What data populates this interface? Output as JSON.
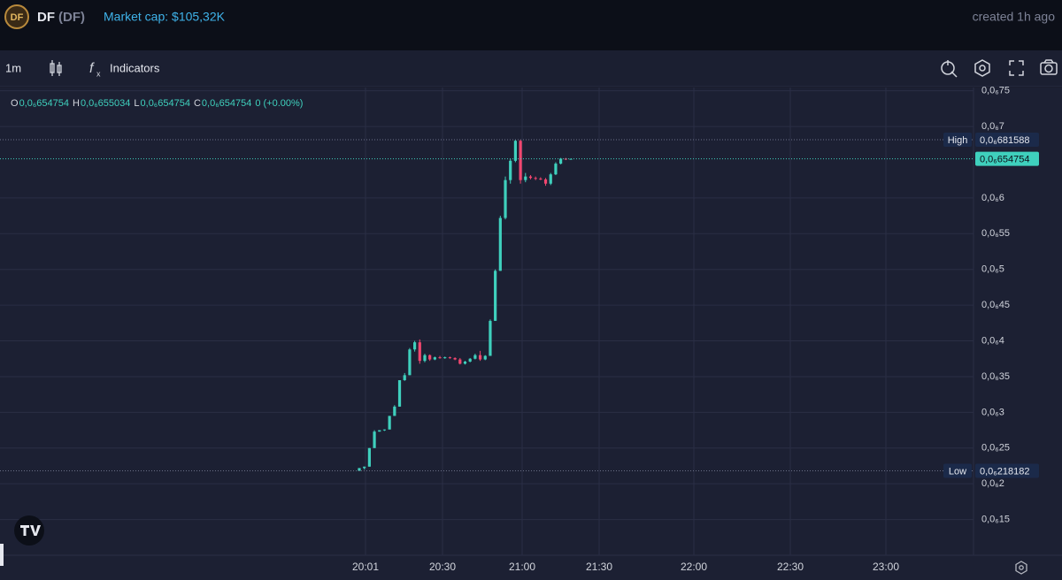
{
  "header": {
    "token": "DF",
    "ticker": "(DF)",
    "market_cap": "Market cap: $105,32K",
    "created": "created 1h ago"
  },
  "toolbar": {
    "interval": "1m",
    "indicators": "Indicators"
  },
  "chart_data": {
    "type": "candlestick",
    "ohlc_legend": [
      {
        "key": "O",
        "value": "0,0₆654754"
      },
      {
        "key": "H",
        "value": "0,0₆655034"
      },
      {
        "key": "L",
        "value": "0,0₆654754"
      },
      {
        "key": "C",
        "value": "0,0₆654754"
      }
    ],
    "change": "0 (+0.00%)",
    "up_color": "#3fd0bd",
    "down_color": "#f2466f",
    "open": [
      2.18e-07,
      2.22e-07,
      2.24e-07,
      2.5e-07,
      2.73e-07,
      2.75e-07,
      2.76e-07,
      2.95e-07,
      3.08e-07,
      3.45e-07,
      3.52e-07,
      3.88e-07,
      3.98e-07,
      3.72e-07,
      3.8e-07,
      3.74e-07,
      3.77e-07,
      3.76e-07,
      3.77e-07,
      3.76e-07,
      3.74e-07,
      3.68e-07,
      3.71e-07,
      3.75e-07,
      3.8e-07,
      3.74e-07,
      3.79e-07,
      4.28e-07,
      4.98e-07,
      5.72e-07,
      6.25e-07,
      6.52e-07,
      6.8e-07,
      6.25e-07,
      6.3e-07,
      6.28e-07,
      6.27e-07,
      6.26e-07,
      6.2e-07,
      6.33e-07,
      6.48e-07,
      6.55e-07,
      6.54754e-07
    ],
    "high": [
      2.22e-07,
      2.24e-07,
      2.5e-07,
      2.75e-07,
      2.75e-07,
      2.76e-07,
      2.95e-07,
      3.1e-07,
      3.45e-07,
      3.55e-07,
      3.9e-07,
      4e-07,
      4.02e-07,
      3.82e-07,
      3.81e-07,
      3.78e-07,
      3.79e-07,
      3.78e-07,
      3.78e-07,
      3.77e-07,
      3.76e-07,
      3.72e-07,
      3.76e-07,
      3.82e-07,
      3.86e-07,
      3.8e-07,
      4.3e-07,
      5e-07,
      5.75e-07,
      6.3e-07,
      6.55e-07,
      6.82e-07,
      6.81588e-07,
      6.35e-07,
      6.32e-07,
      6.3e-07,
      6.29e-07,
      6.28e-07,
      6.35e-07,
      6.5e-07,
      6.56e-07,
      6.56e-07,
      6.55034e-07
    ],
    "low": [
      2.18182e-07,
      2.2e-07,
      2.24e-07,
      2.5e-07,
      2.73e-07,
      2.74e-07,
      2.76e-07,
      2.95e-07,
      3.08e-07,
      3.44e-07,
      3.52e-07,
      3.85e-07,
      3.68e-07,
      3.7e-07,
      3.72e-07,
      3.73e-07,
      3.75e-07,
      3.75e-07,
      3.75e-07,
      3.73e-07,
      3.67e-07,
      3.67e-07,
      3.7e-07,
      3.74e-07,
      3.72e-07,
      3.73e-07,
      3.79e-07,
      4.28e-07,
      4.98e-07,
      5.7e-07,
      6.2e-07,
      6.5e-07,
      6.2e-07,
      6.22e-07,
      6.26e-07,
      6.25e-07,
      6.25e-07,
      6.17e-07,
      6.18e-07,
      6.32e-07,
      6.47e-07,
      6.53e-07,
      6.54754e-07
    ],
    "close": [
      2.22e-07,
      2.24e-07,
      2.5e-07,
      2.73e-07,
      2.75e-07,
      2.76e-07,
      2.95e-07,
      3.08e-07,
      3.45e-07,
      3.52e-07,
      3.88e-07,
      3.98e-07,
      3.72e-07,
      3.8e-07,
      3.74e-07,
      3.77e-07,
      3.76e-07,
      3.77e-07,
      3.76e-07,
      3.74e-07,
      3.68e-07,
      3.71e-07,
      3.75e-07,
      3.8e-07,
      3.74e-07,
      3.79e-07,
      4.28e-07,
      4.98e-07,
      5.72e-07,
      6.25e-07,
      6.52e-07,
      6.8e-07,
      6.25e-07,
      6.3e-07,
      6.28e-07,
      6.27e-07,
      6.26e-07,
      6.2e-07,
      6.33e-07,
      6.48e-07,
      6.55e-07,
      6.54754e-07,
      6.54754e-07
    ],
    "ylim": [
      1e-07,
      7.57e-07
    ],
    "yticks": [
      {
        "value": 7.5e-07,
        "label": "0,0₆75"
      },
      {
        "value": 7e-07,
        "label": "0,0₆7"
      },
      {
        "value": 6e-07,
        "label": "0,0₆6"
      },
      {
        "value": 5.5e-07,
        "label": "0,0₆55"
      },
      {
        "value": 5e-07,
        "label": "0,0₆5"
      },
      {
        "value": 4.5e-07,
        "label": "0,0₆45"
      },
      {
        "value": 4e-07,
        "label": "0,0₆4"
      },
      {
        "value": 3.5e-07,
        "label": "0,0₆35"
      },
      {
        "value": 3e-07,
        "label": "0,0₆3"
      },
      {
        "value": 2.5e-07,
        "label": "0,0₆25"
      },
      {
        "value": 2e-07,
        "label": "0,0₆2"
      },
      {
        "value": 1.5e-07,
        "label": "0,0₆15"
      }
    ],
    "x_labels": [
      "20:01",
      "20:30",
      "21:00",
      "21:30",
      "22:00",
      "22:30",
      "23:00"
    ],
    "high_marker": {
      "label": "High",
      "value": 6.81588e-07,
      "value_label": "0,0₆681588"
    },
    "low_marker": {
      "label": "Low",
      "value": 2.18182e-07,
      "value_label": "0,0₆218182"
    },
    "last_price": {
      "value": 6.54754e-07,
      "value_label": "0,0₆654754"
    },
    "grid": true
  }
}
